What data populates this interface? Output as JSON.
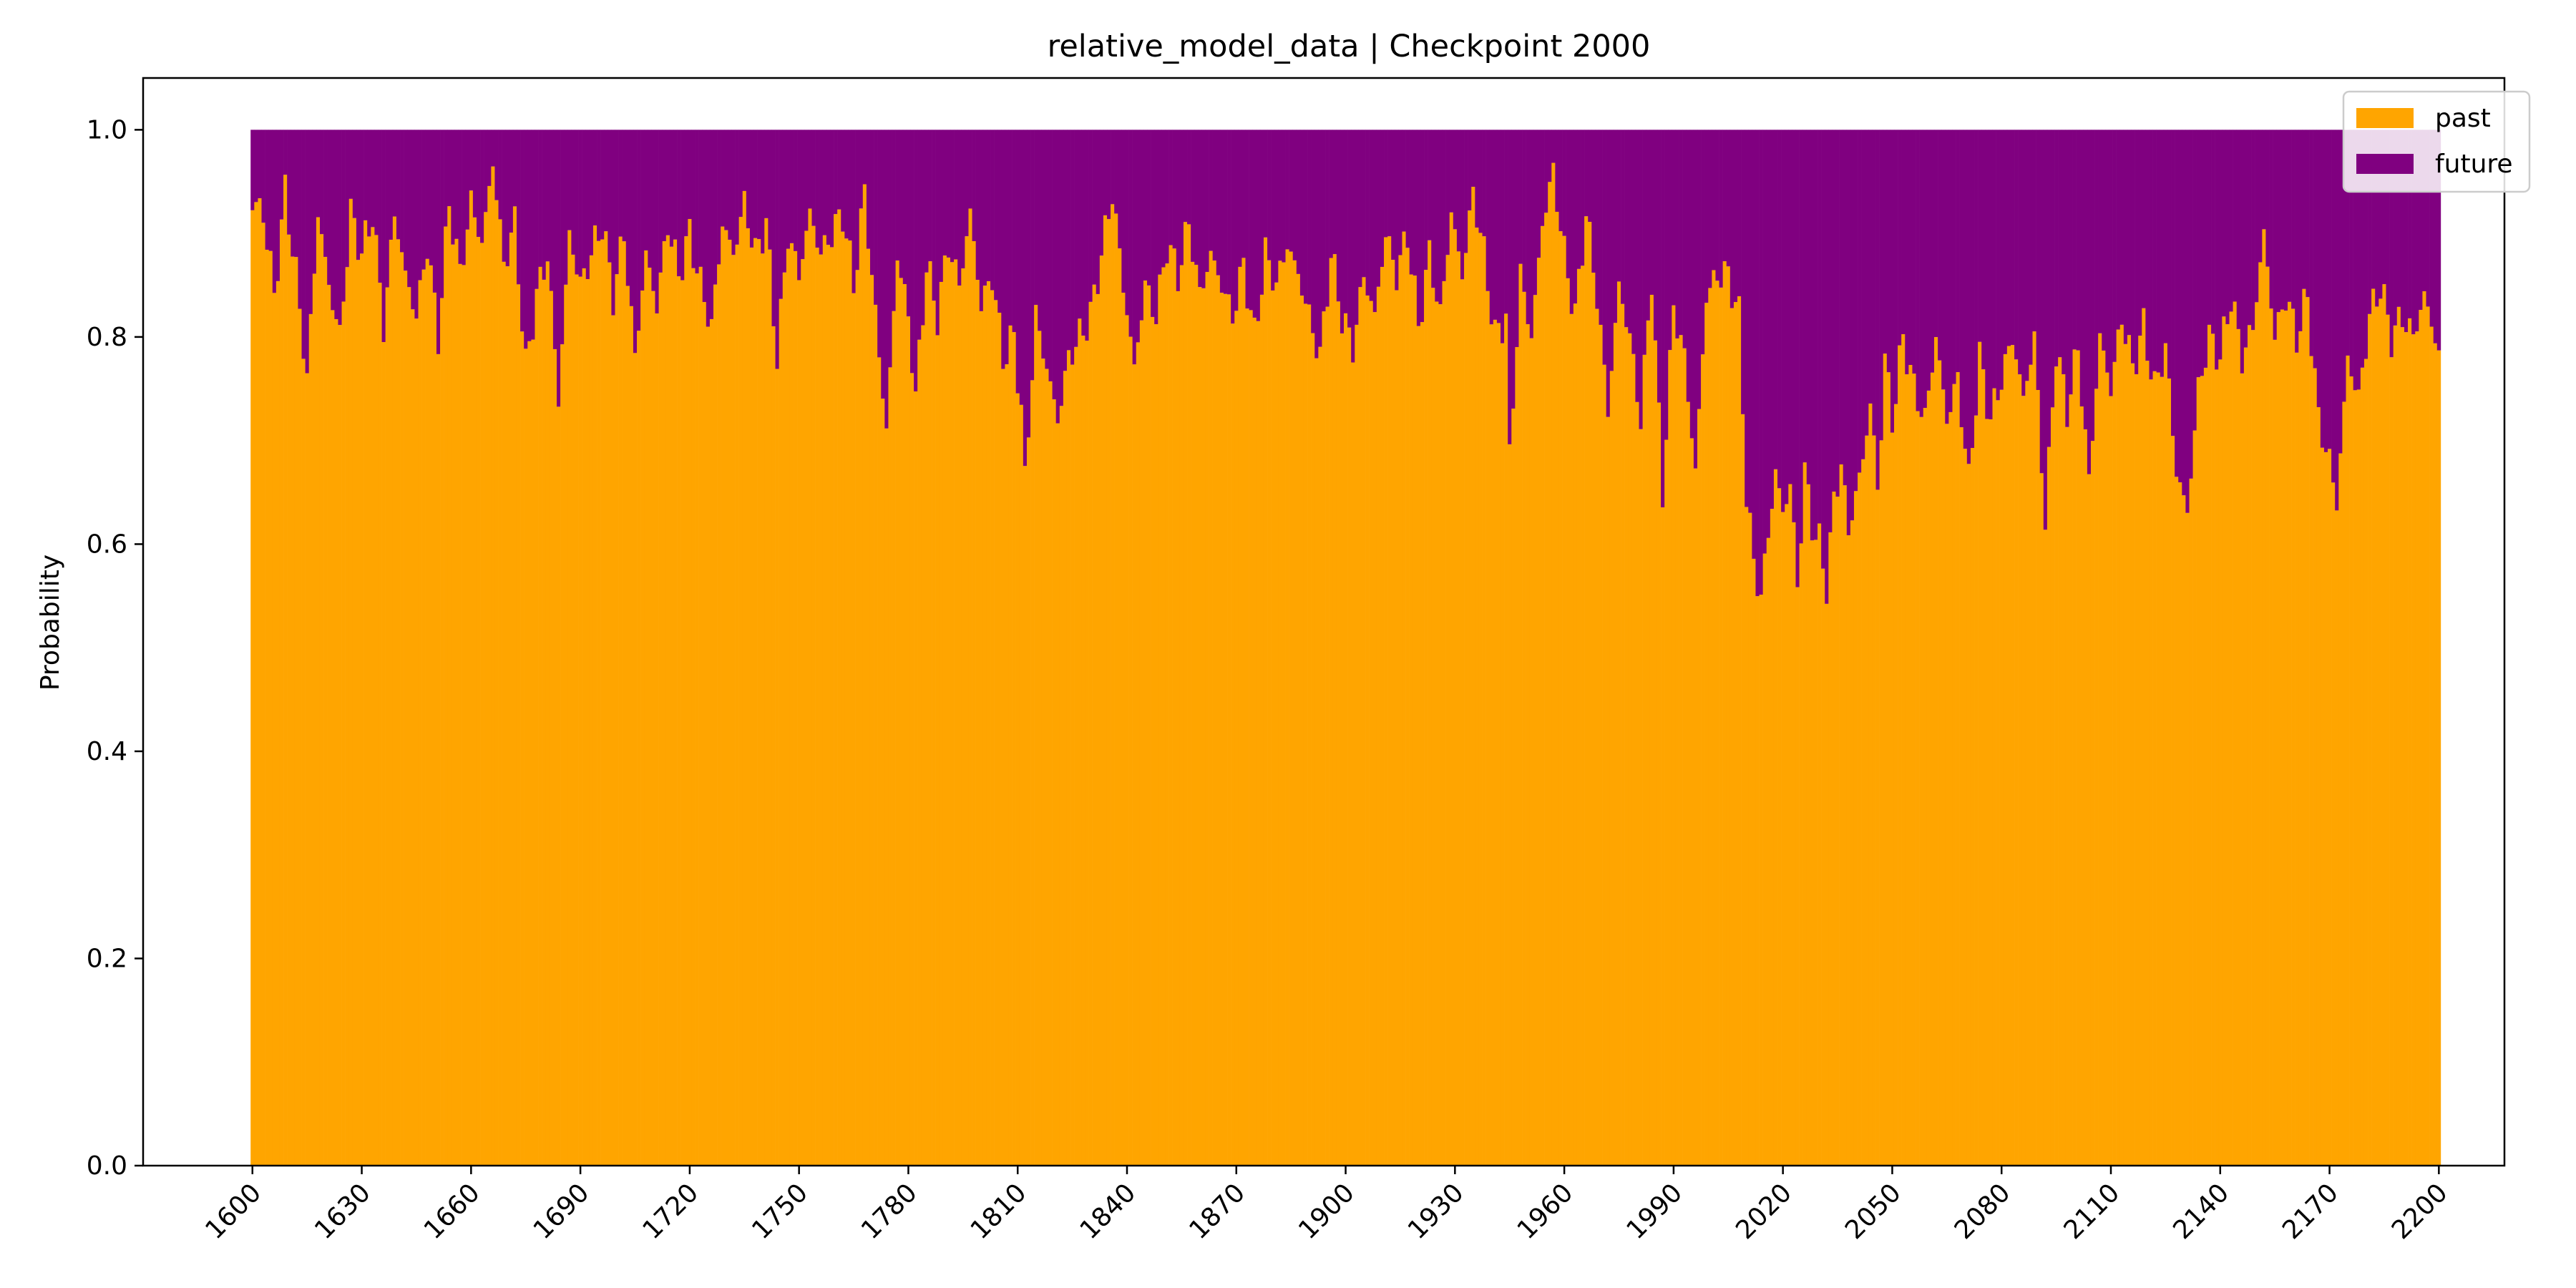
{
  "chart_data": {
    "type": "bar",
    "stacked": true,
    "title": "relative_model_data | Checkpoint 2000",
    "xlabel": "",
    "ylabel": "Probability",
    "xlim": [
      1570,
      2218
    ],
    "ylim": [
      0,
      1.05
    ],
    "x_ticks": [
      1600,
      1630,
      1660,
      1690,
      1720,
      1750,
      1780,
      1810,
      1840,
      1870,
      1900,
      1930,
      1960,
      1990,
      2020,
      2050,
      2080,
      2110,
      2140,
      2170,
      2200
    ],
    "y_ticks": [
      0.0,
      0.2,
      0.4,
      0.6,
      0.8,
      1.0
    ],
    "y_tick_labels": [
      "0.0",
      "0.2",
      "0.4",
      "0.6",
      "0.8",
      "1.0"
    ],
    "legend_position": "top-right",
    "grid": false,
    "x_start": 1600,
    "x_step": 1,
    "series": [
      {
        "name": "past",
        "color": "#FFA500"
      },
      {
        "name": "future",
        "color": "#800080"
      }
    ],
    "past_control_points": [
      [
        1600,
        0.93
      ],
      [
        1603,
        0.92
      ],
      [
        1606,
        0.84
      ],
      [
        1609,
        0.94
      ],
      [
        1612,
        0.86
      ],
      [
        1615,
        0.76
      ],
      [
        1618,
        0.92
      ],
      [
        1621,
        0.85
      ],
      [
        1624,
        0.8
      ],
      [
        1627,
        0.92
      ],
      [
        1630,
        0.88
      ],
      [
        1633,
        0.92
      ],
      [
        1636,
        0.81
      ],
      [
        1639,
        0.92
      ],
      [
        1642,
        0.86
      ],
      [
        1645,
        0.82
      ],
      [
        1648,
        0.89
      ],
      [
        1651,
        0.8
      ],
      [
        1654,
        0.93
      ],
      [
        1657,
        0.86
      ],
      [
        1660,
        0.93
      ],
      [
        1663,
        0.89
      ],
      [
        1666,
        0.97
      ],
      [
        1669,
        0.87
      ],
      [
        1672,
        0.91
      ],
      [
        1675,
        0.77
      ],
      [
        1678,
        0.84
      ],
      [
        1681,
        0.88
      ],
      [
        1684,
        0.74
      ],
      [
        1687,
        0.9
      ],
      [
        1690,
        0.85
      ],
      [
        1693,
        0.88
      ],
      [
        1696,
        0.91
      ],
      [
        1699,
        0.84
      ],
      [
        1702,
        0.9
      ],
      [
        1705,
        0.78
      ],
      [
        1708,
        0.88
      ],
      [
        1711,
        0.83
      ],
      [
        1714,
        0.91
      ],
      [
        1717,
        0.86
      ],
      [
        1720,
        0.9
      ],
      [
        1723,
        0.85
      ],
      [
        1726,
        0.81
      ],
      [
        1729,
        0.91
      ],
      [
        1732,
        0.88
      ],
      [
        1735,
        0.93
      ],
      [
        1738,
        0.88
      ],
      [
        1741,
        0.91
      ],
      [
        1744,
        0.78
      ],
      [
        1747,
        0.9
      ],
      [
        1750,
        0.86
      ],
      [
        1753,
        0.92
      ],
      [
        1756,
        0.88
      ],
      [
        1759,
        0.9
      ],
      [
        1762,
        0.92
      ],
      [
        1765,
        0.85
      ],
      [
        1768,
        0.94
      ],
      [
        1771,
        0.82
      ],
      [
        1774,
        0.71
      ],
      [
        1777,
        0.88
      ],
      [
        1780,
        0.82
      ],
      [
        1782,
        0.74
      ],
      [
        1785,
        0.87
      ],
      [
        1788,
        0.82
      ],
      [
        1791,
        0.89
      ],
      [
        1794,
        0.85
      ],
      [
        1797,
        0.92
      ],
      [
        1800,
        0.83
      ],
      [
        1803,
        0.86
      ],
      [
        1806,
        0.78
      ],
      [
        1809,
        0.8
      ],
      [
        1811,
        0.73
      ],
      [
        1812,
        0.66
      ],
      [
        1815,
        0.82
      ],
      [
        1818,
        0.77
      ],
      [
        1821,
        0.72
      ],
      [
        1824,
        0.78
      ],
      [
        1827,
        0.8
      ],
      [
        1830,
        0.82
      ],
      [
        1833,
        0.88
      ],
      [
        1836,
        0.94
      ],
      [
        1839,
        0.85
      ],
      [
        1842,
        0.77
      ],
      [
        1845,
        0.85
      ],
      [
        1848,
        0.82
      ],
      [
        1851,
        0.89
      ],
      [
        1854,
        0.86
      ],
      [
        1857,
        0.91
      ],
      [
        1860,
        0.84
      ],
      [
        1863,
        0.88
      ],
      [
        1866,
        0.85
      ],
      [
        1869,
        0.82
      ],
      [
        1872,
        0.87
      ],
      [
        1875,
        0.8
      ],
      [
        1878,
        0.88
      ],
      [
        1881,
        0.85
      ],
      [
        1884,
        0.89
      ],
      [
        1887,
        0.86
      ],
      [
        1890,
        0.82
      ],
      [
        1893,
        0.78
      ],
      [
        1896,
        0.88
      ],
      [
        1899,
        0.82
      ],
      [
        1902,
        0.79
      ],
      [
        1905,
        0.86
      ],
      [
        1908,
        0.82
      ],
      [
        1911,
        0.9
      ],
      [
        1914,
        0.86
      ],
      [
        1917,
        0.9
      ],
      [
        1920,
        0.81
      ],
      [
        1923,
        0.88
      ],
      [
        1926,
        0.82
      ],
      [
        1929,
        0.92
      ],
      [
        1932,
        0.86
      ],
      [
        1935,
        0.94
      ],
      [
        1938,
        0.88
      ],
      [
        1941,
        0.8
      ],
      [
        1944,
        0.82
      ],
      [
        1945,
        0.68
      ],
      [
        1948,
        0.86
      ],
      [
        1951,
        0.8
      ],
      [
        1954,
        0.91
      ],
      [
        1957,
        0.96
      ],
      [
        1960,
        0.88
      ],
      [
        1963,
        0.82
      ],
      [
        1966,
        0.92
      ],
      [
        1969,
        0.84
      ],
      [
        1972,
        0.73
      ],
      [
        1975,
        0.85
      ],
      [
        1978,
        0.8
      ],
      [
        1981,
        0.72
      ],
      [
        1984,
        0.86
      ],
      [
        1987,
        0.65
      ],
      [
        1990,
        0.83
      ],
      [
        1993,
        0.78
      ],
      [
        1996,
        0.67
      ],
      [
        1999,
        0.84
      ],
      [
        2002,
        0.86
      ],
      [
        2005,
        0.86
      ],
      [
        2008,
        0.82
      ],
      [
        2010,
        0.65
      ],
      [
        2012,
        0.58
      ],
      [
        2014,
        0.55
      ],
      [
        2016,
        0.61
      ],
      [
        2018,
        0.67
      ],
      [
        2020,
        0.63
      ],
      [
        2022,
        0.66
      ],
      [
        2024,
        0.56
      ],
      [
        2026,
        0.67
      ],
      [
        2028,
        0.62
      ],
      [
        2030,
        0.6
      ],
      [
        2032,
        0.56
      ],
      [
        2034,
        0.64
      ],
      [
        2036,
        0.68
      ],
      [
        2038,
        0.61
      ],
      [
        2040,
        0.65
      ],
      [
        2042,
        0.68
      ],
      [
        2044,
        0.74
      ],
      [
        2046,
        0.65
      ],
      [
        2048,
        0.78
      ],
      [
        2050,
        0.72
      ],
      [
        2053,
        0.8
      ],
      [
        2056,
        0.75
      ],
      [
        2059,
        0.72
      ],
      [
        2062,
        0.8
      ],
      [
        2065,
        0.72
      ],
      [
        2068,
        0.76
      ],
      [
        2071,
        0.66
      ],
      [
        2074,
        0.78
      ],
      [
        2077,
        0.72
      ],
      [
        2080,
        0.76
      ],
      [
        2083,
        0.8
      ],
      [
        2086,
        0.74
      ],
      [
        2089,
        0.8
      ],
      [
        2092,
        0.62
      ],
      [
        2095,
        0.79
      ],
      [
        2098,
        0.73
      ],
      [
        2101,
        0.79
      ],
      [
        2104,
        0.66
      ],
      [
        2107,
        0.8
      ],
      [
        2110,
        0.75
      ],
      [
        2113,
        0.82
      ],
      [
        2116,
        0.77
      ],
      [
        2119,
        0.81
      ],
      [
        2122,
        0.75
      ],
      [
        2125,
        0.79
      ],
      [
        2128,
        0.67
      ],
      [
        2131,
        0.63
      ],
      [
        2134,
        0.75
      ],
      [
        2137,
        0.8
      ],
      [
        2140,
        0.78
      ],
      [
        2143,
        0.84
      ],
      [
        2146,
        0.78
      ],
      [
        2149,
        0.81
      ],
      [
        2152,
        0.9
      ],
      [
        2155,
        0.8
      ],
      [
        2158,
        0.84
      ],
      [
        2161,
        0.8
      ],
      [
        2164,
        0.84
      ],
      [
        2167,
        0.72
      ],
      [
        2170,
        0.68
      ],
      [
        2172,
        0.64
      ],
      [
        2175,
        0.78
      ],
      [
        2178,
        0.74
      ],
      [
        2181,
        0.82
      ],
      [
        2184,
        0.85
      ],
      [
        2187,
        0.8
      ],
      [
        2190,
        0.82
      ],
      [
        2193,
        0.8
      ],
      [
        2196,
        0.84
      ],
      [
        2199,
        0.8
      ],
      [
        2200,
        0.78
      ]
    ]
  }
}
